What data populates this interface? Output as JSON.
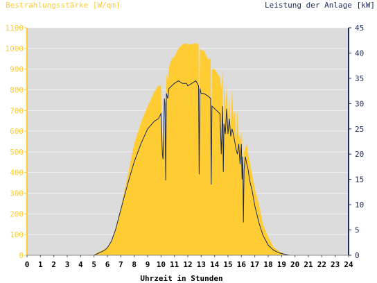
{
  "chart_data": {
    "type": "area",
    "title_left": "Bestrahlungsstärke [W/qm]",
    "title_right": "Leistung der Anlage [kW]",
    "xlabel": "Uhrzeit in Stunden",
    "x_ticks": [
      "0",
      "1",
      "2",
      "3",
      "4",
      "5",
      "6",
      "7",
      "8",
      "9",
      "10",
      "11",
      "12",
      "13",
      "14",
      "15",
      "16",
      "17",
      "18",
      "19",
      "20",
      "21",
      "22",
      "23",
      "24"
    ],
    "xlim": [
      0,
      24
    ],
    "y_left": {
      "label": "Bestrahlungsstärke [W/qm]",
      "lim": [
        0,
        1100
      ],
      "ticks": [
        "0",
        "100",
        "200",
        "300",
        "400",
        "500",
        "600",
        "700",
        "800",
        "900",
        "1000",
        "1100"
      ]
    },
    "y_right": {
      "label": "Leistung der Anlage [kW]",
      "lim": [
        0,
        45
      ],
      "ticks": [
        "0",
        "5",
        "10",
        "15",
        "20",
        "25",
        "30",
        "35",
        "40",
        "45"
      ]
    },
    "grid": true,
    "colors": {
      "plot_bg": "#dcdcdc",
      "irradiance_fill": "#ffcc33",
      "left_axis_text": "#ffcc33",
      "power_line": "#1a2a5a",
      "right_axis_text": "#1a2a5a",
      "axis_text": "#000000"
    },
    "series": [
      {
        "axis": "left",
        "style": "filled-area",
        "x": [
          0,
          4.9,
          5.5,
          5.8,
          6.0,
          6.3,
          6.6,
          7.0,
          7.5,
          8.0,
          8.5,
          9.0,
          9.5,
          9.8,
          10.0,
          10.1,
          10.15,
          10.25,
          10.3,
          10.35,
          10.4,
          10.5,
          10.6,
          10.8,
          11.0,
          11.3,
          11.6,
          11.9,
          12.0,
          12.3,
          12.6,
          12.8,
          12.85,
          12.9,
          13.0,
          13.2,
          13.5,
          13.7,
          13.75,
          13.8,
          14.0,
          14.2,
          14.4,
          14.5,
          14.6,
          14.65,
          14.7,
          14.8,
          14.9,
          15.0,
          15.1,
          15.2,
          15.3,
          15.4,
          15.5,
          15.6,
          15.7,
          15.8,
          15.9,
          16.0,
          16.05,
          16.1,
          16.15,
          16.2,
          16.3,
          16.4,
          16.5,
          16.6,
          16.8,
          17.0,
          17.3,
          17.6,
          18.0,
          18.4,
          18.8,
          19.2,
          19.6,
          20.0,
          24
        ],
        "y": [
          0,
          0,
          20,
          30,
          40,
          70,
          130,
          230,
          380,
          540,
          640,
          720,
          790,
          820,
          820,
          560,
          480,
          760,
          700,
          400,
          880,
          840,
          910,
          950,
          960,
          1000,
          1020,
          1025,
          1020,
          1020,
          1025,
          1020,
          560,
          1000,
          990,
          990,
          950,
          950,
          500,
          900,
          900,
          880,
          860,
          800,
          900,
          420,
          850,
          700,
          830,
          650,
          760,
          620,
          800,
          660,
          700,
          560,
          700,
          580,
          560,
          600,
          400,
          580,
          300,
          500,
          520,
          540,
          490,
          460,
          390,
          320,
          250,
          150,
          90,
          40,
          20,
          5,
          0,
          0,
          0
        ]
      },
      {
        "axis": "right",
        "style": "line",
        "x": [
          0,
          5.0,
          5.5,
          5.8,
          6.0,
          6.3,
          6.6,
          7.0,
          7.5,
          8.0,
          8.5,
          9.0,
          9.5,
          9.8,
          10.0,
          10.1,
          10.15,
          10.25,
          10.3,
          10.35,
          10.4,
          10.5,
          10.6,
          10.8,
          11.0,
          11.3,
          11.6,
          11.9,
          12.0,
          12.3,
          12.6,
          12.8,
          12.85,
          12.9,
          13.0,
          13.2,
          13.5,
          13.7,
          13.75,
          13.8,
          14.0,
          14.2,
          14.4,
          14.5,
          14.6,
          14.65,
          14.7,
          14.8,
          14.9,
          15.0,
          15.1,
          15.2,
          15.3,
          15.4,
          15.5,
          15.6,
          15.7,
          15.8,
          15.9,
          16.0,
          16.05,
          16.1,
          16.15,
          16.2,
          16.3,
          16.4,
          16.5,
          16.6,
          16.8,
          17.0,
          17.3,
          17.6,
          18.0,
          18.4,
          18.8,
          19.2,
          19.6,
          20.0,
          24
        ],
        "y": [
          0,
          0,
          0.6,
          1.0,
          1.5,
          2.8,
          5,
          9,
          14,
          18.5,
          22,
          25,
          26.5,
          27,
          28,
          20,
          19,
          31,
          30,
          14.8,
          32,
          31,
          33,
          33.5,
          34,
          34.5,
          34,
          34,
          33.5,
          34,
          34.5,
          33.5,
          16,
          33,
          32,
          32,
          31.5,
          31,
          14,
          29.5,
          29,
          28.5,
          28,
          20,
          29.5,
          16.5,
          26,
          24,
          29,
          24,
          27,
          23.5,
          25,
          24,
          22.5,
          21,
          20,
          22,
          18,
          22,
          15,
          19.5,
          6.5,
          17,
          19.5,
          18,
          17,
          15,
          12.8,
          9.8,
          6.5,
          4,
          2,
          1,
          0.5,
          0.2,
          0,
          0,
          0
        ]
      }
    ]
  }
}
